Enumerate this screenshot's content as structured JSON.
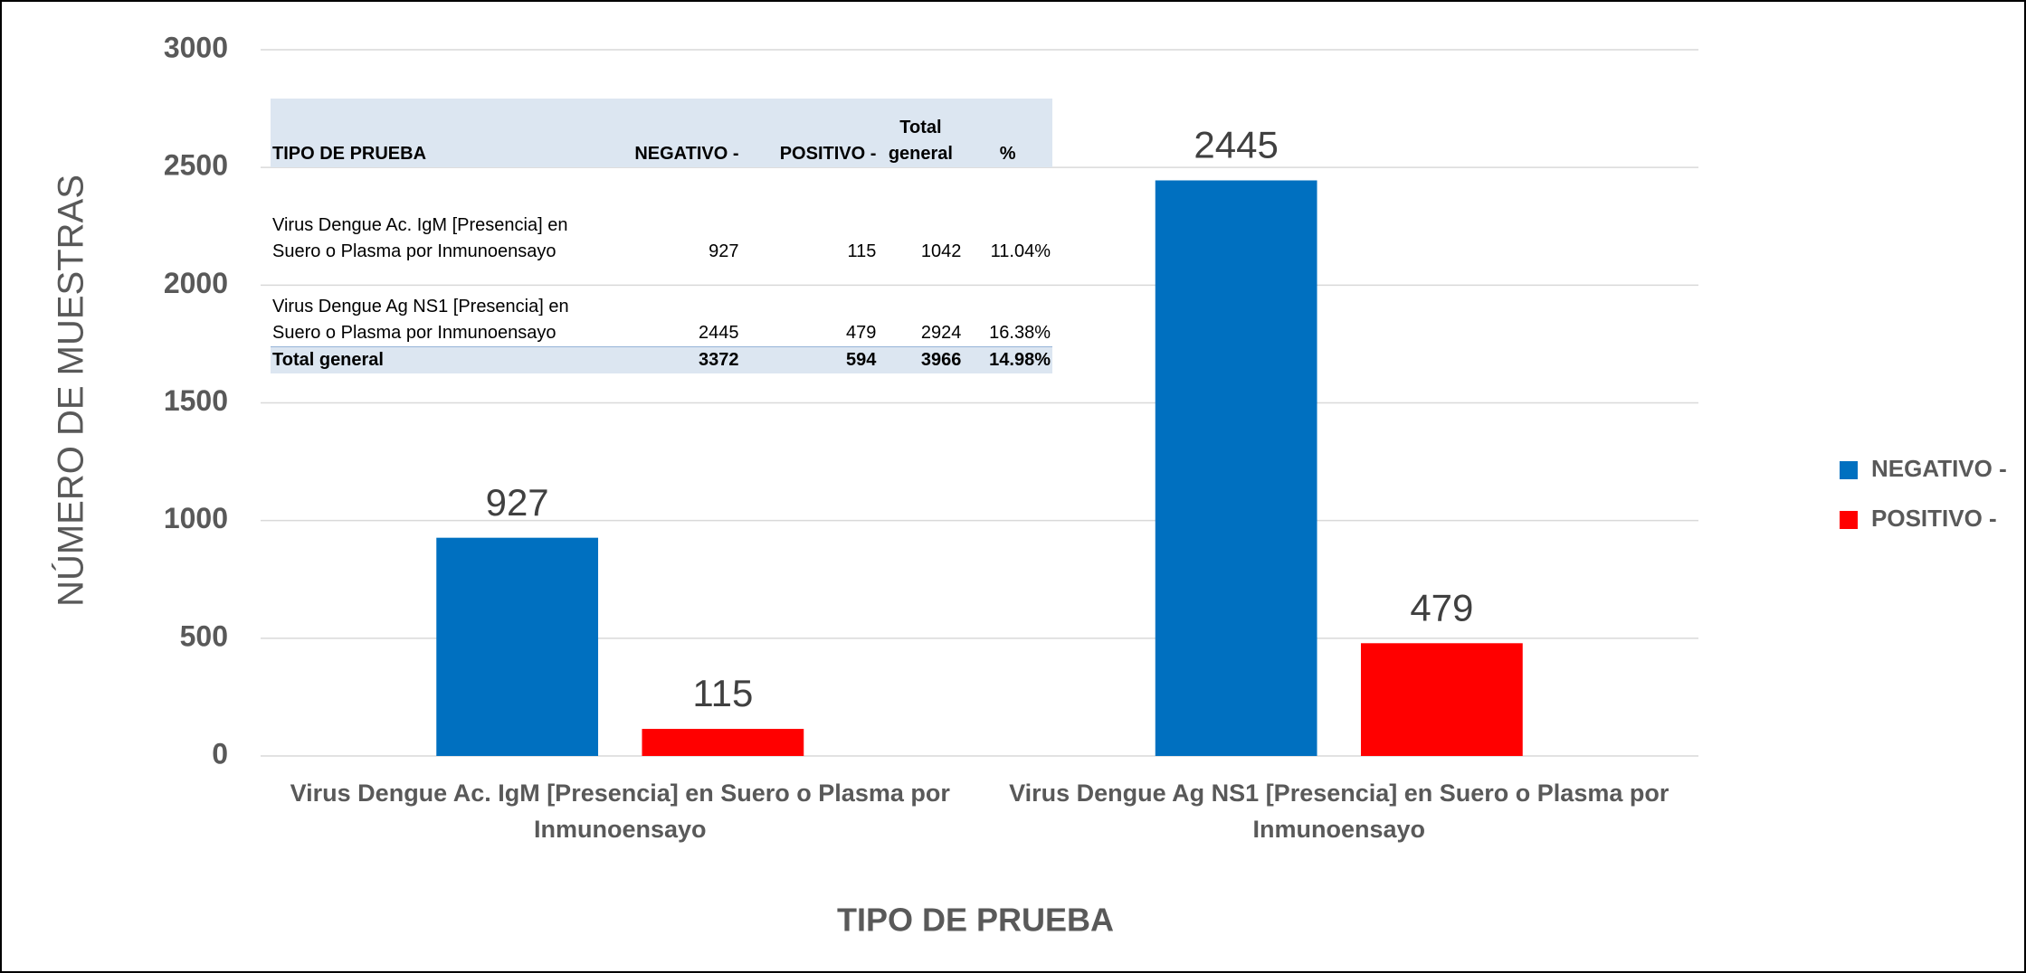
{
  "chart_data": {
    "type": "bar",
    "categories": [
      "Virus Dengue Ac. IgM [Presencia] en Suero o Plasma por Inmunoensayo",
      "Virus Dengue Ag NS1 [Presencia] en Suero o Plasma por Inmunoensayo"
    ],
    "series": [
      {
        "name": "NEGATIVO -",
        "color": "#0070c0",
        "values": [
          927,
          2445
        ]
      },
      {
        "name": "POSITIVO -",
        "color": "#ff0000",
        "values": [
          115,
          479
        ]
      }
    ],
    "xlabel": "TIPO DE PRUEBA",
    "ylabel": "NÚMERO DE MUESTRAS",
    "ylim": [
      0,
      3000
    ],
    "yticks": [
      0,
      500,
      1000,
      1500,
      2000,
      2500,
      3000
    ],
    "grid": true,
    "legend": "right"
  },
  "table": {
    "header": [
      "TIPO DE PRUEBA",
      "NEGATIVO -",
      "POSITIVO -",
      "Total general",
      "%"
    ],
    "rows": [
      [
        "Virus Dengue Ac. IgM [Presencia] en Suero o Plasma por Inmunoensayo",
        "927",
        "115",
        "1042",
        "11.04%"
      ],
      [
        "Virus Dengue Ag NS1 [Presencia] en Suero o Plasma por Inmunoensayo",
        "2445",
        "479",
        "2924",
        "16.38%"
      ]
    ],
    "total": [
      "Total general",
      "3372",
      "594",
      "3966",
      "14.98%"
    ]
  }
}
